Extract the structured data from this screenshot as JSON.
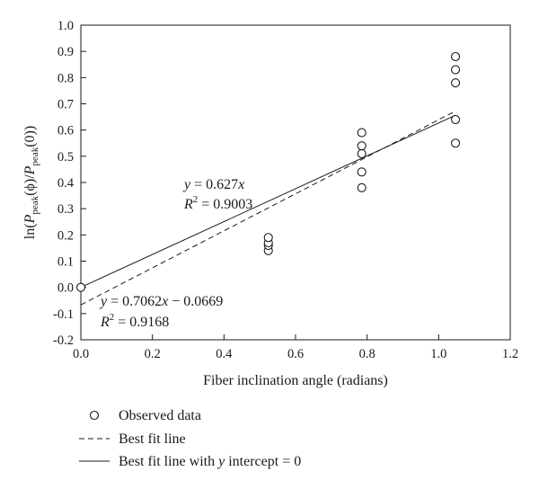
{
  "chart_data": {
    "type": "scatter",
    "xlabel": "Fiber inclination angle (radians)",
    "ylabel_parts": {
      "prefix": "ln(",
      "p1": "P",
      "sub1": "peak",
      "mid": "(ϕ)/",
      "p2": "P",
      "sub2": "peak",
      "suffix": "(0))"
    },
    "xlim": [
      0.0,
      1.2
    ],
    "ylim": [
      -0.2,
      1.0
    ],
    "xticks": [
      "0.0",
      "0.2",
      "0.4",
      "0.6",
      "0.8",
      "1.0",
      "1.2"
    ],
    "yticks": [
      "-0.2",
      "-0.1",
      "0.0",
      "0.1",
      "0.2",
      "0.3",
      "0.4",
      "0.5",
      "0.6",
      "0.7",
      "0.8",
      "0.9",
      "1.0"
    ],
    "grid": false,
    "series": [
      {
        "name": "Observed data",
        "kind": "points",
        "x": [
          0.0,
          0.524,
          0.524,
          0.524,
          0.524,
          0.785,
          0.785,
          0.785,
          0.785,
          0.785,
          1.047,
          1.047,
          1.047,
          1.047,
          1.047
        ],
        "y": [
          0.0,
          0.14,
          0.16,
          0.17,
          0.19,
          0.38,
          0.44,
          0.51,
          0.54,
          0.59,
          0.55,
          0.64,
          0.78,
          0.83,
          0.88
        ]
      },
      {
        "name": "Best fit line",
        "kind": "dashed",
        "slope": 0.7062,
        "intercept": -0.0669,
        "x_range": [
          0.0,
          1.047
        ]
      },
      {
        "name": "Best fit line with y intercept = 0",
        "kind": "solid",
        "slope": 0.627,
        "intercept": 0.0,
        "x_range": [
          0.0,
          1.047
        ]
      }
    ],
    "annotations": {
      "fit0": {
        "eq_var": "y",
        "eq_rest": " = 0.627",
        "eq_x": "x",
        "r2_var": "R",
        "r2_sup": "2",
        "r2_rest": " = 0.9003"
      },
      "fit1": {
        "eq_var": "y",
        "eq_rest": " = 0.7062",
        "eq_x": "x",
        "eq_tail": " − 0.0669",
        "r2_var": "R",
        "r2_sup": "2",
        "r2_rest": " = 0.9168"
      }
    },
    "legend": {
      "placement": "bottom",
      "items": [
        {
          "label": "Observed data"
        },
        {
          "label": "Best fit line"
        },
        {
          "label_pre": "Best fit line with ",
          "label_var": "y",
          "label_post": " intercept = 0"
        }
      ]
    }
  }
}
